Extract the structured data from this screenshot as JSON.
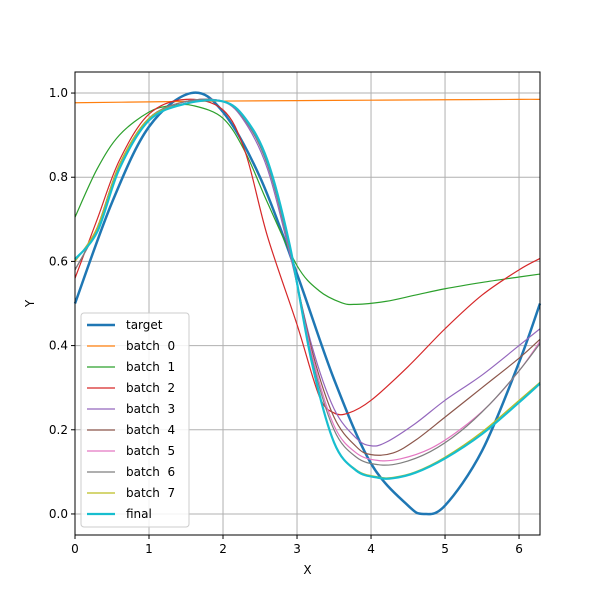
{
  "chart_data": {
    "type": "line",
    "title": "",
    "xlabel": "X",
    "ylabel": "Y",
    "xlim": [
      0,
      6.2832
    ],
    "ylim": [
      -0.05,
      1.05
    ],
    "xticks": [
      0,
      1,
      2,
      3,
      4,
      5,
      6
    ],
    "yticks": [
      0.0,
      0.2,
      0.4,
      0.6,
      0.8,
      1.0
    ],
    "xtick_labels": [
      "0",
      "1",
      "2",
      "3",
      "4",
      "5",
      "6"
    ],
    "ytick_labels": [
      "0.0",
      "0.2",
      "0.4",
      "0.6",
      "0.8",
      "1.0"
    ],
    "grid": true,
    "legend_position": "lower-left",
    "series": [
      {
        "name": "target",
        "color": "#1f77b4",
        "width": 2.5,
        "x": [
          0,
          0.5,
          1,
          1.5708,
          2,
          2.5,
          3,
          3.5,
          4,
          4.5,
          4.7124,
          5,
          5.5,
          6,
          6.2832
        ],
        "y": [
          0.5,
          0.74,
          0.92,
          1.0,
          0.955,
          0.8,
          0.57,
          0.32,
          0.12,
          0.02,
          0.0,
          0.02,
          0.15,
          0.36,
          0.5
        ]
      },
      {
        "name": "batch  0",
        "color": "#ff7f0e",
        "width": 1.2,
        "x": [
          0,
          1,
          2,
          3,
          4,
          5,
          6,
          6.2832
        ],
        "y": [
          0.977,
          0.979,
          0.981,
          0.982,
          0.983,
          0.984,
          0.985,
          0.985
        ]
      },
      {
        "name": "batch  1",
        "color": "#2ca02c",
        "width": 1.2,
        "x": [
          0,
          0.3,
          0.6,
          1,
          1.3,
          1.6,
          2,
          2.3,
          2.6,
          3,
          3.3,
          3.6,
          3.8,
          4.2,
          4.6,
          5,
          5.5,
          6,
          6.2832
        ],
        "y": [
          0.705,
          0.82,
          0.9,
          0.955,
          0.97,
          0.97,
          0.94,
          0.86,
          0.74,
          0.59,
          0.53,
          0.502,
          0.498,
          0.505,
          0.52,
          0.535,
          0.55,
          0.563,
          0.57
        ]
      },
      {
        "name": "batch  2",
        "color": "#d62728",
        "width": 1.2,
        "x": [
          0,
          0.3,
          0.6,
          1,
          1.5,
          2,
          2.3,
          2.6,
          3,
          3.3,
          3.5,
          3.7,
          4,
          4.5,
          5,
          5.5,
          6,
          6.2832
        ],
        "y": [
          0.56,
          0.7,
          0.84,
          0.95,
          0.985,
          0.96,
          0.86,
          0.66,
          0.45,
          0.28,
          0.24,
          0.24,
          0.27,
          0.35,
          0.44,
          0.52,
          0.58,
          0.607
        ]
      },
      {
        "name": "batch  3",
        "color": "#9467bd",
        "width": 1.2,
        "x": [
          0,
          0.3,
          0.6,
          1,
          1.5,
          2,
          2.3,
          2.6,
          2.9,
          3.2,
          3.5,
          3.8,
          4,
          4.2,
          4.6,
          5,
          5.5,
          6,
          6.2832
        ],
        "y": [
          0.58,
          0.68,
          0.83,
          0.94,
          0.98,
          0.98,
          0.93,
          0.82,
          0.62,
          0.4,
          0.25,
          0.18,
          0.162,
          0.17,
          0.215,
          0.27,
          0.33,
          0.4,
          0.44
        ]
      },
      {
        "name": "batch  4",
        "color": "#8c564b",
        "width": 1.2,
        "x": [
          0,
          0.3,
          0.6,
          1,
          1.5,
          2,
          2.3,
          2.6,
          2.9,
          3.2,
          3.5,
          3.8,
          4,
          4.3,
          4.6,
          5,
          5.5,
          6,
          6.2832
        ],
        "y": [
          0.58,
          0.68,
          0.83,
          0.94,
          0.98,
          0.98,
          0.935,
          0.83,
          0.63,
          0.39,
          0.23,
          0.16,
          0.141,
          0.145,
          0.175,
          0.23,
          0.3,
          0.37,
          0.415
        ]
      },
      {
        "name": "batch  5",
        "color": "#e377c2",
        "width": 1.2,
        "x": [
          0,
          0.3,
          0.6,
          1,
          1.5,
          2,
          2.3,
          2.6,
          2.9,
          3.2,
          3.5,
          3.8,
          4.1,
          4.4,
          4.8,
          5.2,
          5.6,
          6,
          6.2832
        ],
        "y": [
          0.6,
          0.68,
          0.83,
          0.94,
          0.98,
          0.98,
          0.935,
          0.83,
          0.63,
          0.38,
          0.21,
          0.145,
          0.127,
          0.131,
          0.155,
          0.2,
          0.26,
          0.34,
          0.41
        ]
      },
      {
        "name": "batch  6",
        "color": "#7f7f7f",
        "width": 1.2,
        "x": [
          0,
          0.3,
          0.6,
          1,
          1.5,
          2,
          2.3,
          2.6,
          2.9,
          3.2,
          3.5,
          3.8,
          4.1,
          4.4,
          4.8,
          5.2,
          5.6,
          6,
          6.2832
        ],
        "y": [
          0.58,
          0.68,
          0.83,
          0.94,
          0.98,
          0.98,
          0.935,
          0.83,
          0.63,
          0.37,
          0.2,
          0.135,
          0.117,
          0.121,
          0.148,
          0.195,
          0.26,
          0.34,
          0.405
        ]
      },
      {
        "name": "batch  7",
        "color": "#bcbd22",
        "width": 1.2,
        "x": [
          0,
          0.3,
          0.6,
          1,
          1.5,
          2,
          2.3,
          2.6,
          2.9,
          3.2,
          3.5,
          3.8,
          4.1,
          4.3,
          4.6,
          5,
          5.5,
          6,
          6.2832
        ],
        "y": [
          0.6,
          0.68,
          0.83,
          0.94,
          0.975,
          0.98,
          0.94,
          0.84,
          0.64,
          0.36,
          0.17,
          0.105,
          0.088,
          0.087,
          0.1,
          0.135,
          0.195,
          0.27,
          0.313
        ]
      },
      {
        "name": "final",
        "color": "#17becf",
        "width": 2.2,
        "x": [
          0,
          0.3,
          0.6,
          1,
          1.5,
          2,
          2.3,
          2.6,
          2.9,
          3.2,
          3.5,
          3.8,
          4.1,
          4.3,
          4.6,
          5,
          5.5,
          6,
          6.2832
        ],
        "y": [
          0.605,
          0.67,
          0.82,
          0.935,
          0.975,
          0.98,
          0.94,
          0.84,
          0.64,
          0.36,
          0.17,
          0.103,
          0.086,
          0.085,
          0.098,
          0.132,
          0.19,
          0.265,
          0.31
        ]
      }
    ]
  }
}
